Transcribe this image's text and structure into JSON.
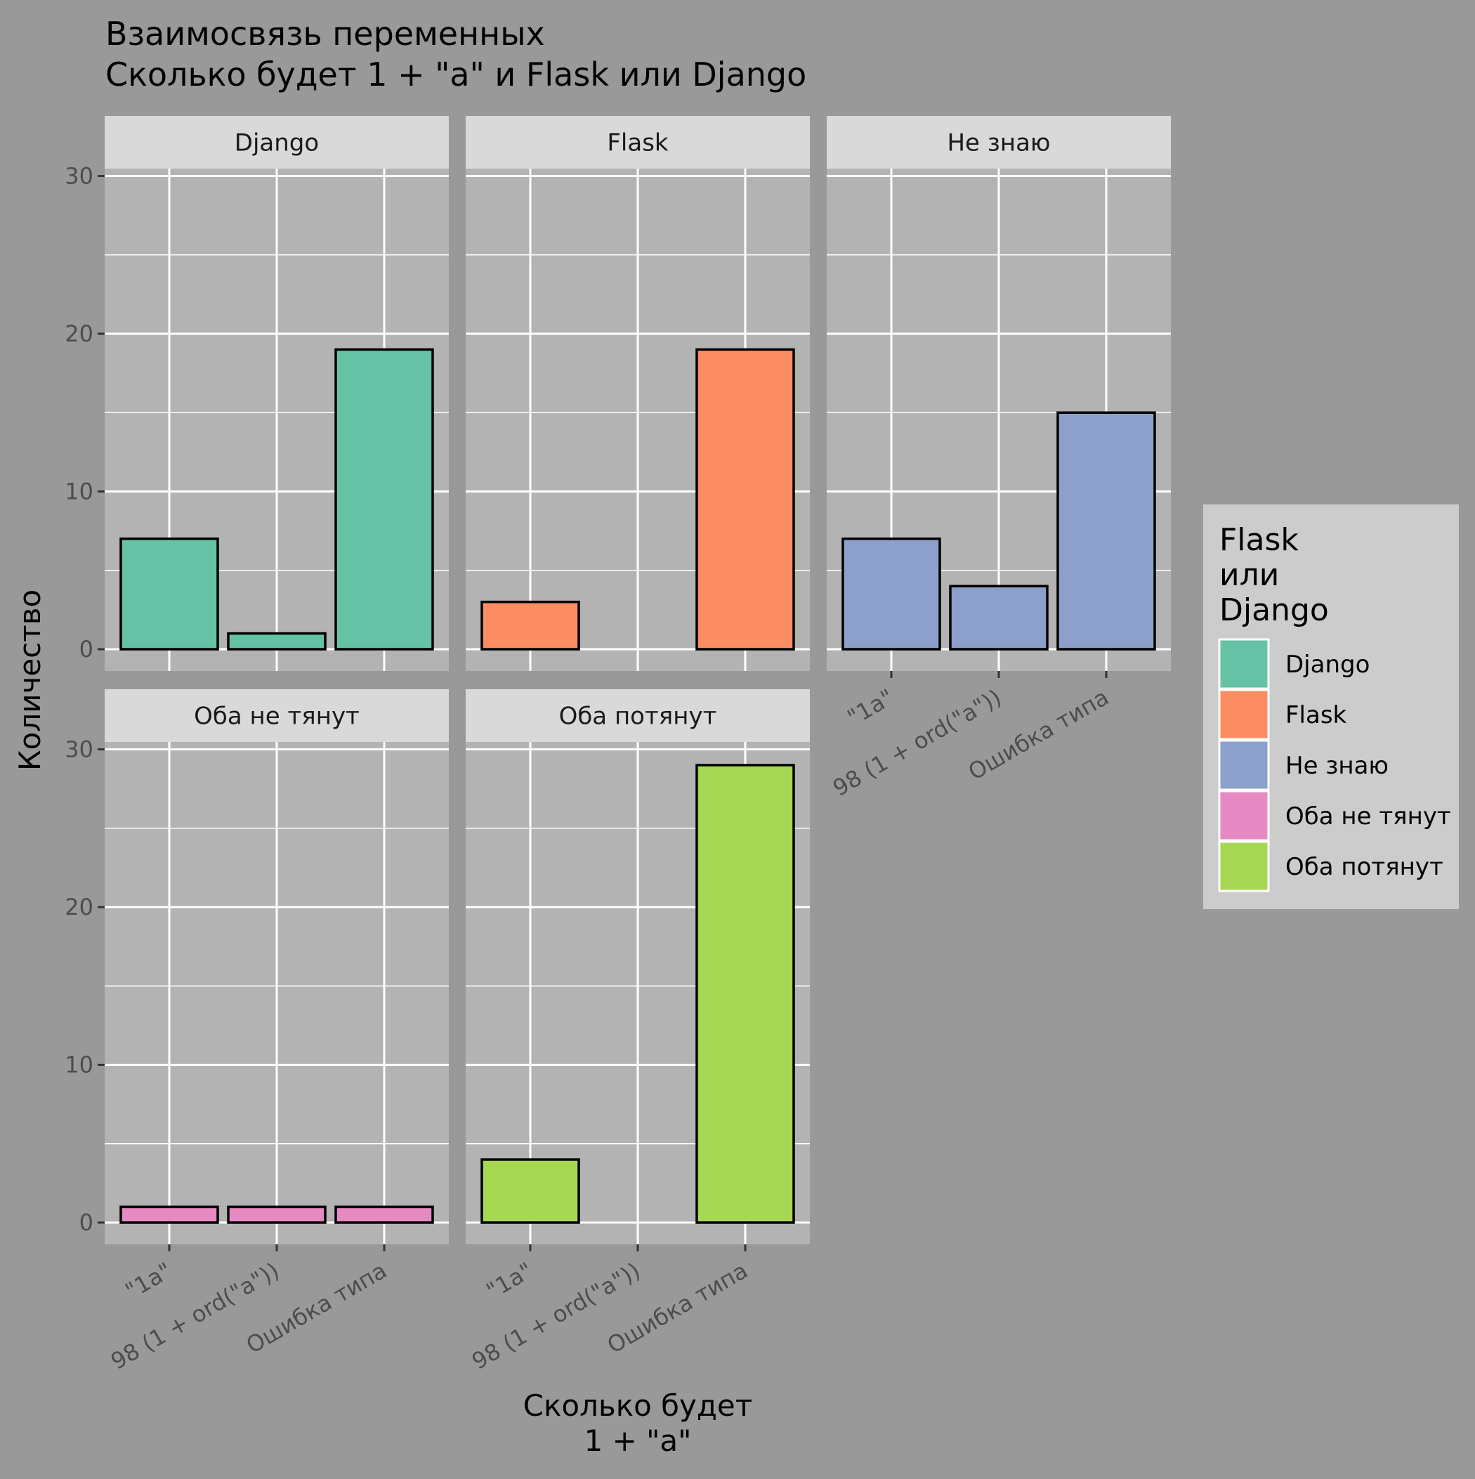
{
  "chart_data": {
    "type": "bar",
    "title_lines": [
      "Взаимосвязь переменных",
      " Сколько будет 1 + \"a\" и Flask или Django"
    ],
    "xlabel_lines": [
      "Сколько будет",
      "1 + \"a\""
    ],
    "ylabel": "Количество",
    "categories": [
      "\"1a\"",
      "98 (1 + ord(\"a\"))",
      "Ошибка типа"
    ],
    "ylim": [
      0,
      31
    ],
    "yticks": [
      0,
      10,
      20,
      30
    ],
    "grid": true,
    "legend": {
      "title_lines": [
        "Flask",
        "или",
        "Django"
      ],
      "position": "right"
    },
    "series": [
      {
        "name": "Django",
        "color": "#66C2A5",
        "values": [
          7,
          1,
          19
        ]
      },
      {
        "name": "Flask",
        "color": "#FC8D62",
        "values": [
          3,
          0,
          19
        ]
      },
      {
        "name": "Не знаю",
        "color": "#8DA0CB",
        "values": [
          7,
          4,
          15
        ]
      },
      {
        "name": "Оба не тянут",
        "color": "#E78AC3",
        "values": [
          1,
          1,
          1
        ]
      },
      {
        "name": "Оба потянут",
        "color": "#A6D854",
        "values": [
          4,
          0,
          29
        ]
      }
    ]
  }
}
